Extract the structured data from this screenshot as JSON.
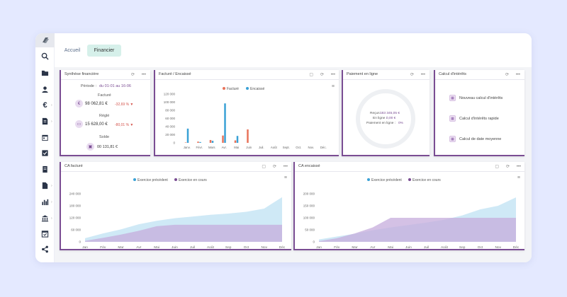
{
  "tabs": {
    "home": "Accueil",
    "finance": "Financier"
  },
  "colors": {
    "accent": "#7a4d93",
    "active_tab": "#d6f0ea",
    "factured": "#e8735a",
    "encaisse": "#3aa1d6",
    "prev": "#bfe1f3",
    "curr": "#c6acdc"
  },
  "sidebar": {
    "icons": [
      "search-icon",
      "folder-icon",
      "user-icon",
      "euro-icon",
      "document-icon",
      "calendar-icon",
      "checkbox-icon",
      "invoice-icon",
      "file-icon",
      "bar-chart-icon",
      "bank-icon",
      "calendar-check-icon",
      "share-icon"
    ]
  },
  "synthese": {
    "title": "Synthèse financière",
    "period_label": "Période :",
    "period_value": "du 01-01 au 16-06",
    "facture_label": "Facturé",
    "facture_amount": "98 062,81 €",
    "facture_pct": "-32,69 % ▼",
    "regle_label": "Réglé",
    "regle_amount": "15 628,00 €",
    "regle_pct": "-80,01 % ▼",
    "solde_label": "Solde",
    "solde_amount": "00 131,81 €"
  },
  "facture_panel": {
    "title": "Facturé / Encaissé",
    "legend_facture": "Facturé",
    "legend_encaisse": "Encaissé"
  },
  "paiement": {
    "title": "Paiement en ligne",
    "recus_label": "Reçus :",
    "recus_value": "183 345,05 €",
    "enligne_label": "En ligne :",
    "enligne_value": "0,00 €",
    "pct_label": "Paiement en ligne :",
    "pct_value": "0%"
  },
  "interets": {
    "title": "Calcul d'intérêts",
    "items": [
      "Nouveau calcul d'intérêts",
      "Calcul d'intérêts rapide",
      "Calcul de date moyenne"
    ]
  },
  "ca_facture": {
    "title": "CA facturé",
    "legend_prev": "Exercice précédent",
    "legend_curr": "Exercice en cours"
  },
  "ca_encaisse": {
    "title": "CA encaissé",
    "legend_prev": "Exercice précédent",
    "legend_curr": "Exercice en cours"
  },
  "chart_data": [
    {
      "type": "bar",
      "title": "",
      "categories": [
        "Janv.",
        "Févr.",
        "Mars",
        "Avr.",
        "Mai",
        "Juin",
        "Juil.",
        "Août",
        "Sept.",
        "Oct.",
        "Nov.",
        "Déc."
      ],
      "ylim": [
        0,
        120000
      ],
      "yticks": [
        "120 000",
        "100 000",
        "80 000",
        "60 000",
        "40 000",
        "20 000",
        "0"
      ],
      "series": [
        {
          "name": "Facturé",
          "color": "#e8735a",
          "values": [
            1000,
            3000,
            7000,
            18000,
            6000,
            33000,
            0,
            0,
            0,
            0,
            0,
            0
          ]
        },
        {
          "name": "Encaissé",
          "color": "#3aa1d6",
          "values": [
            35000,
            2000,
            5000,
            97000,
            17000,
            0,
            0,
            0,
            0,
            0,
            0,
            0
          ]
        }
      ],
      "legend": "top"
    },
    {
      "type": "area",
      "title": "",
      "categories": [
        "Jan",
        "Fév",
        "Mar",
        "Avr",
        "Mai",
        "Juin",
        "Juil",
        "Août",
        "Sep",
        "Oct",
        "Nov",
        "Déc"
      ],
      "ylim": [
        0,
        240000
      ],
      "yticks": [
        "240 000",
        "180 000",
        "120 000",
        "60 000",
        "0"
      ],
      "series": [
        {
          "name": "Exercice précédent",
          "color": "#bfe1f3",
          "values": [
            18000,
            42000,
            62000,
            88000,
            105000,
            118000,
            126000,
            135000,
            141000,
            150000,
            166000,
            223000
          ]
        },
        {
          "name": "Exercice en cours",
          "color": "#c6acdc",
          "values": [
            5000,
            20000,
            36000,
            55000,
            78000,
            85000,
            85000,
            85000,
            85000,
            85000,
            85000,
            85000
          ]
        }
      ],
      "legend": "top"
    },
    {
      "type": "area",
      "title": "",
      "categories": [
        "Jan",
        "Fév",
        "Mar",
        "Avr",
        "Mai",
        "Juin",
        "Juil",
        "Août",
        "Sep",
        "Oct",
        "Nov",
        "Déc"
      ],
      "ylim": [
        0,
        200000
      ],
      "yticks": [
        "200 000",
        "150 000",
        "100 000",
        "50 000",
        "0"
      ],
      "series": [
        {
          "name": "Exercice précédent",
          "color": "#bfe1f3",
          "values": [
            10000,
            22000,
            34000,
            48000,
            60000,
            70000,
            80000,
            92000,
            110000,
            135000,
            150000,
            185000
          ]
        },
        {
          "name": "Exercice en cours",
          "color": "#c6acdc",
          "values": [
            3000,
            15000,
            35000,
            60000,
            100000,
            100000,
            100000,
            100000,
            100000,
            100000,
            100000,
            100000
          ]
        }
      ],
      "legend": "top"
    }
  ]
}
